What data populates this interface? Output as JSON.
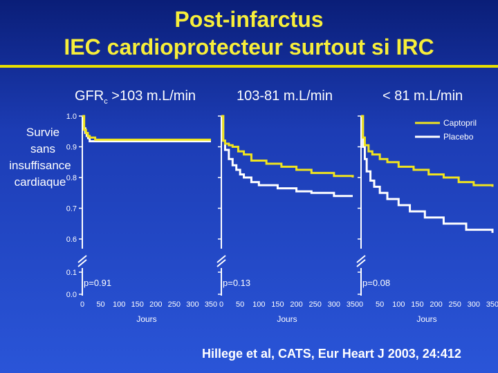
{
  "title_line1": "Post-infarctus",
  "title_line2": "IEC cardioprotecteur surtout si IRC",
  "header_gfr_prefix": "GFR",
  "header_gfr_sub": "c",
  "header_gfr_suffix": " >103 m.L/min",
  "header2": "103-81 m.L/min",
  "header3": "< 81 m.L/min",
  "ylabel_lines": [
    "Survie",
    "sans",
    "insuffisance",
    "cardiaque"
  ],
  "legend": [
    "Captopril",
    "Placebo"
  ],
  "citation": "Hillege et al, CATS, Eur Heart J 2003, 24:412",
  "colors": {
    "captopril": "#f0e41e",
    "placebo": "#ffffff",
    "title": "#f7ee3a"
  },
  "chart_data": [
    {
      "type": "line",
      "panel_label": "GFRc >103 m.L/min",
      "xlabel": "Jours",
      "x_ticks": [
        0,
        50,
        100,
        150,
        200,
        250,
        300,
        350
      ],
      "y_ticks": [
        "1.0",
        "0.9",
        "0.8",
        "0.7",
        "0.6",
        "0.1",
        "0.0"
      ],
      "y_break": "0.1-0.6",
      "p_value": "p=0.91",
      "series": [
        {
          "name": "Captopril",
          "x": [
            0,
            5,
            10,
            15,
            20,
            35,
            350
          ],
          "y": [
            1.0,
            0.955,
            0.945,
            0.935,
            0.93,
            0.923,
            0.923
          ]
        },
        {
          "name": "Placebo",
          "x": [
            0,
            4,
            8,
            12,
            16,
            20,
            350
          ],
          "y": [
            1.0,
            0.96,
            0.945,
            0.935,
            0.928,
            0.918,
            0.918
          ]
        }
      ]
    },
    {
      "type": "line",
      "panel_label": "103-81 m.L/min",
      "xlabel": "Jours",
      "x_ticks": [
        0,
        50,
        100,
        150,
        200,
        250,
        300,
        350
      ],
      "y_ticks": [],
      "p_value": "p=0.13",
      "series": [
        {
          "name": "Captopril",
          "x": [
            0,
            5,
            10,
            20,
            30,
            45,
            60,
            80,
            120,
            160,
            200,
            240,
            300,
            350
          ],
          "y": [
            1.0,
            0.92,
            0.91,
            0.905,
            0.9,
            0.885,
            0.875,
            0.855,
            0.845,
            0.835,
            0.825,
            0.815,
            0.805,
            0.8
          ]
        },
        {
          "name": "Placebo",
          "x": [
            0,
            5,
            10,
            20,
            30,
            40,
            50,
            60,
            80,
            100,
            150,
            200,
            240,
            300,
            350
          ],
          "y": [
            1.0,
            0.92,
            0.89,
            0.86,
            0.84,
            0.825,
            0.81,
            0.8,
            0.785,
            0.775,
            0.765,
            0.755,
            0.75,
            0.74,
            0.74
          ]
        }
      ]
    },
    {
      "type": "line",
      "panel_label": "< 81 m.L/min",
      "xlabel": "Jours",
      "x_ticks": [
        0,
        50,
        100,
        150,
        200,
        250,
        300,
        350
      ],
      "y_ticks": [],
      "p_value": "p=0.08",
      "series": [
        {
          "name": "Captopril",
          "x": [
            0,
            5,
            10,
            20,
            30,
            50,
            70,
            100,
            140,
            180,
            220,
            260,
            300,
            350
          ],
          "y": [
            1.0,
            0.93,
            0.905,
            0.885,
            0.875,
            0.86,
            0.85,
            0.835,
            0.825,
            0.81,
            0.8,
            0.785,
            0.775,
            0.77
          ]
        },
        {
          "name": "Placebo",
          "x": [
            0,
            5,
            10,
            15,
            25,
            35,
            50,
            70,
            100,
            130,
            170,
            220,
            280,
            350
          ],
          "y": [
            1.0,
            0.9,
            0.86,
            0.82,
            0.79,
            0.77,
            0.75,
            0.73,
            0.71,
            0.69,
            0.67,
            0.65,
            0.63,
            0.62
          ]
        }
      ]
    }
  ]
}
